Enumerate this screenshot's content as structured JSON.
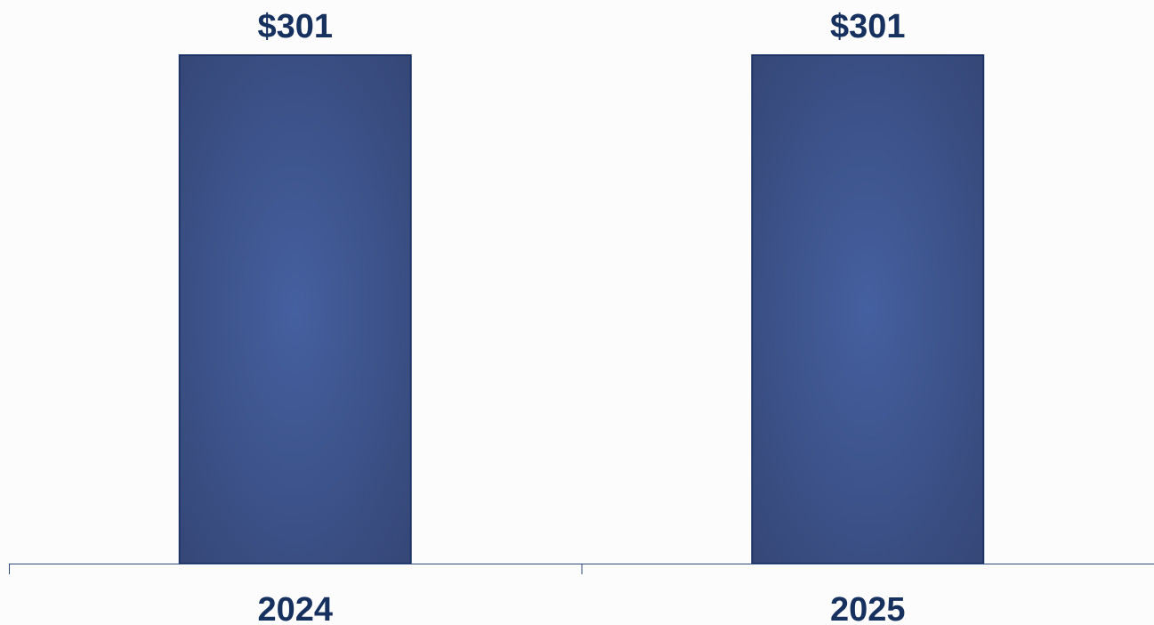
{
  "chart_data": {
    "type": "bar",
    "categories": [
      "2024",
      "2025"
    ],
    "values": [
      301,
      301
    ],
    "value_labels": [
      "$301",
      "$301"
    ],
    "ylim": [
      0,
      301
    ],
    "grid": false,
    "legend": "none",
    "colors": {
      "bar_center": "#4560a0",
      "bar_edge": "#344574",
      "bar_border": "#1f3466",
      "label": "#17315f",
      "axis": "#2e4a7a"
    }
  }
}
